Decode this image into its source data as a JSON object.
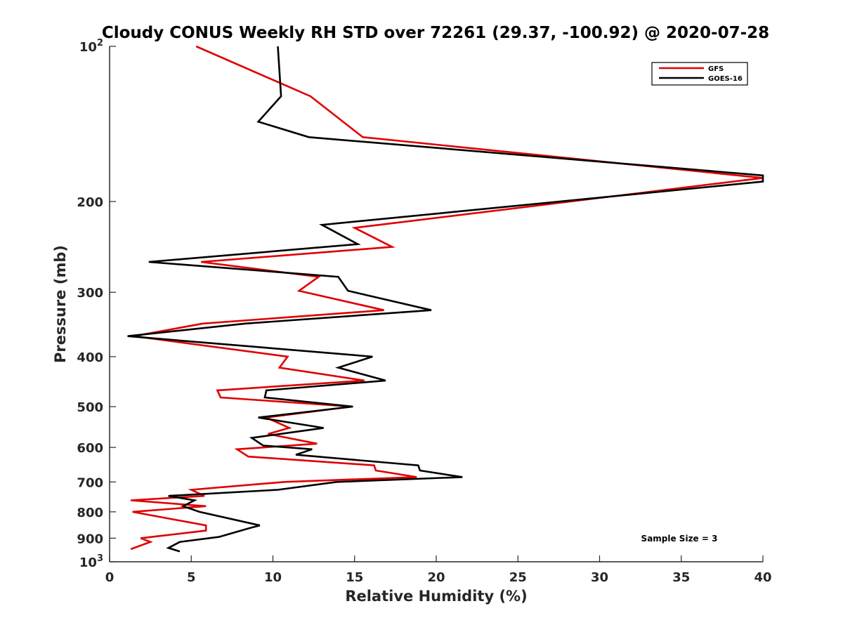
{
  "chart_data": {
    "type": "line",
    "title": "Cloudy CONUS Weekly RH STD over 72261 (29.37, -100.92) @ 2020-07-28",
    "xlabel": "Relative Humidity (%)",
    "ylabel": "Pressure (mb)",
    "xlim": [
      0,
      40
    ],
    "ylim": [
      100,
      1000
    ],
    "y_scale": "log",
    "y_reversed": true,
    "grid": false,
    "legend_position": "top-right",
    "x_ticks": [
      "0",
      "5",
      "10",
      "15",
      "20",
      "25",
      "30",
      "35",
      "40"
    ],
    "y_ticks": [
      {
        "value": 100,
        "base": "10",
        "exp": "2"
      },
      {
        "value": 200,
        "label": "200"
      },
      {
        "value": 300,
        "label": "300"
      },
      {
        "value": 400,
        "label": "400"
      },
      {
        "value": 500,
        "label": "500"
      },
      {
        "value": 600,
        "label": "600"
      },
      {
        "value": 700,
        "label": "700"
      },
      {
        "value": 800,
        "label": "800"
      },
      {
        "value": 900,
        "label": "900"
      },
      {
        "value": 1000,
        "base": "10",
        "exp": "3"
      }
    ],
    "annotation": "Sample Size = 3",
    "series": [
      {
        "name": "GFS",
        "color": "#e00000",
        "points": [
          [
            5.3,
            100
          ],
          [
            12.3,
            125
          ],
          [
            15.5,
            150
          ],
          [
            40,
            180
          ],
          [
            15.0,
            225
          ],
          [
            17.3,
            245
          ],
          [
            5.6,
            262
          ],
          [
            12.8,
            280
          ],
          [
            11.6,
            298
          ],
          [
            16.8,
            325
          ],
          [
            5.7,
            345
          ],
          [
            1.5,
            365
          ],
          [
            10.9,
            400
          ],
          [
            10.4,
            420
          ],
          [
            15.6,
            445
          ],
          [
            6.6,
            465
          ],
          [
            6.8,
            480
          ],
          [
            14.8,
            500
          ],
          [
            9.6,
            525
          ],
          [
            11.0,
            550
          ],
          [
            9.7,
            565
          ],
          [
            12.7,
            590
          ],
          [
            7.8,
            605
          ],
          [
            8.5,
            625
          ],
          [
            16.2,
            650
          ],
          [
            16.3,
            665
          ],
          [
            18.8,
            685
          ],
          [
            10.7,
            700
          ],
          [
            5.0,
            725
          ],
          [
            5.8,
            745
          ],
          [
            1.3,
            760
          ],
          [
            5.9,
            780
          ],
          [
            1.4,
            800
          ],
          [
            5.9,
            850
          ],
          [
            5.9,
            870
          ],
          [
            1.9,
            900
          ],
          [
            2.5,
            915
          ],
          [
            1.3,
            945
          ]
        ]
      },
      {
        "name": "GOES-16",
        "color": "#000000",
        "points": [
          [
            10.3,
            100
          ],
          [
            10.5,
            125
          ],
          [
            9.1,
            140
          ],
          [
            12.2,
            150
          ],
          [
            40,
            178
          ],
          [
            40,
            183
          ],
          [
            13.0,
            222
          ],
          [
            15.2,
            242
          ],
          [
            2.4,
            262
          ],
          [
            14.0,
            280
          ],
          [
            14.6,
            298
          ],
          [
            19.7,
            325
          ],
          [
            8.3,
            345
          ],
          [
            1.1,
            365
          ],
          [
            16.1,
            400
          ],
          [
            14.0,
            420
          ],
          [
            16.9,
            445
          ],
          [
            9.6,
            465
          ],
          [
            9.5,
            480
          ],
          [
            14.9,
            500
          ],
          [
            9.1,
            525
          ],
          [
            13.1,
            550
          ],
          [
            8.7,
            575
          ],
          [
            9.4,
            595
          ],
          [
            12.4,
            605
          ],
          [
            11.4,
            620
          ],
          [
            18.9,
            650
          ],
          [
            19.0,
            665
          ],
          [
            21.6,
            685
          ],
          [
            13.9,
            700
          ],
          [
            10.3,
            725
          ],
          [
            3.6,
            745
          ],
          [
            5.2,
            760
          ],
          [
            4.5,
            780
          ],
          [
            5.5,
            800
          ],
          [
            9.2,
            850
          ],
          [
            8.6,
            860
          ],
          [
            6.7,
            895
          ],
          [
            4.3,
            915
          ],
          [
            3.6,
            940
          ],
          [
            4.3,
            955
          ]
        ]
      }
    ]
  }
}
